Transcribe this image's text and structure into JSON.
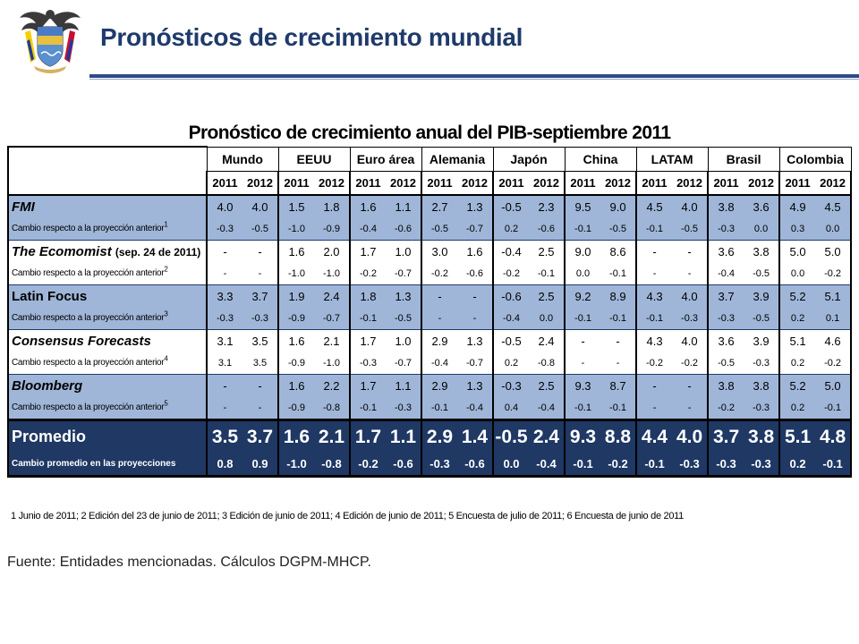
{
  "header": {
    "title": "Pronósticos de crecimiento mundial"
  },
  "table": {
    "title": "Pronóstico de crecimiento anual del PIB-septiembre 2011",
    "regions": [
      "Mundo",
      "EEUU",
      "Euro área",
      "Alemania",
      "Japón",
      "China",
      "LATAM",
      "Brasil",
      "Colombia"
    ],
    "years": [
      "2011",
      "2012"
    ],
    "sources": [
      {
        "name": "FMI",
        "note": "",
        "change_label": "Cambio respecto a la proyección anterior",
        "change_sup": "1",
        "values": [
          "4.0",
          "4.0",
          "1.5",
          "1.8",
          "1.6",
          "1.1",
          "2.7",
          "1.3",
          "-0.5",
          "2.3",
          "9.5",
          "9.0",
          "4.5",
          "4.0",
          "3.8",
          "3.6",
          "4.9",
          "4.5"
        ],
        "changes": [
          "-0.3",
          "-0.5",
          "-1.0",
          "-0.9",
          "-0.4",
          "-0.6",
          "-0.5",
          "-0.7",
          "0.2",
          "-0.6",
          "-0.1",
          "-0.5",
          "-0.1",
          "-0.5",
          "-0.3",
          "0.0",
          "0.3",
          "0.0"
        ]
      },
      {
        "name": "The Ecomomist",
        "note": "(sep. 24 de 2011)",
        "change_label": "Cambio respecto a la proyección anterior",
        "change_sup": "2",
        "values": [
          "-",
          "-",
          "1.6",
          "2.0",
          "1.7",
          "1.0",
          "3.0",
          "1.6",
          "-0.4",
          "2.5",
          "9.0",
          "8.6",
          "-",
          "-",
          "3.6",
          "3.8",
          "5.0",
          "5.0"
        ],
        "changes": [
          "-",
          "-",
          "-1.0",
          "-1.0",
          "-0.2",
          "-0.7",
          "-0.2",
          "-0.6",
          "-0.2",
          "-0.1",
          "0.0",
          "-0.1",
          "-",
          "-",
          "-0.4",
          "-0.5",
          "0.0",
          "-0.2"
        ]
      },
      {
        "name": "Latin Focus",
        "note": "",
        "change_label": "Cambio respecto a la proyección anterior",
        "change_sup": "3",
        "values": [
          "3.3",
          "3.7",
          "1.9",
          "2.4",
          "1.8",
          "1.3",
          "-",
          "-",
          "-0.6",
          "2.5",
          "9.2",
          "8.9",
          "4.3",
          "4.0",
          "3.7",
          "3.9",
          "5.2",
          "5.1"
        ],
        "changes": [
          "-0.3",
          "-0.3",
          "-0.9",
          "-0.7",
          "-0.1",
          "-0.5",
          "-",
          "-",
          "-0.4",
          "0.0",
          "-0.1",
          "-0.1",
          "-0.1",
          "-0.3",
          "-0.3",
          "-0.5",
          "0.2",
          "0.1"
        ]
      },
      {
        "name": "Consensus Forecasts",
        "note": "",
        "change_label": "Cambio respecto a la proyección anterior",
        "change_sup": "4",
        "values": [
          "3.1",
          "3.5",
          "1.6",
          "2.1",
          "1.7",
          "1.0",
          "2.9",
          "1.3",
          "-0.5",
          "2.4",
          "-",
          "-",
          "4.3",
          "4.0",
          "3.6",
          "3.9",
          "5.1",
          "4.6"
        ],
        "changes": [
          "3.1",
          "3.5",
          "-0.9",
          "-1.0",
          "-0.3",
          "-0.7",
          "-0.4",
          "-0.7",
          "0.2",
          "-0.8",
          "-",
          "-",
          "-0.2",
          "-0.2",
          "-0.5",
          "-0.3",
          "0.2",
          "-0.2"
        ]
      },
      {
        "name": "Bloomberg",
        "note": "",
        "change_label": "Cambio respecto a la proyección anterior",
        "change_sup": "5",
        "values": [
          "-",
          "-",
          "1.6",
          "2.2",
          "1.7",
          "1.1",
          "2.9",
          "1.3",
          "-0.3",
          "2.5",
          "9.3",
          "8.7",
          "-",
          "-",
          "3.8",
          "3.8",
          "5.2",
          "5.0"
        ],
        "changes": [
          "-",
          "-",
          "-0.9",
          "-0.8",
          "-0.1",
          "-0.3",
          "-0.1",
          "-0.4",
          "0.4",
          "-0.4",
          "-0.1",
          "-0.1",
          "-",
          "-",
          "-0.2",
          "-0.3",
          "0.2",
          "-0.1"
        ]
      }
    ],
    "average": {
      "name": "Promedio",
      "change_label": "Cambio promedio en las proyecciones",
      "values": [
        "3.5",
        "3.7",
        "1.6",
        "2.1",
        "1.7",
        "1.1",
        "2.9",
        "1.4",
        "-0.5",
        "2.4",
        "9.3",
        "8.8",
        "4.4",
        "4.0",
        "3.7",
        "3.8",
        "5.1",
        "4.8"
      ],
      "changes": [
        "0.8",
        "0.9",
        "-1.0",
        "-0.8",
        "-0.2",
        "-0.6",
        "-0.3",
        "-0.6",
        "0.0",
        "-0.4",
        "-0.1",
        "-0.2",
        "-0.1",
        "-0.3",
        "-0.3",
        "-0.3",
        "0.2",
        "-0.1"
      ]
    },
    "footnote": "1 Junio de 2011; 2 Edición del 23 de junio de 2011; 3 Edición de junio de 2011; 4 Edición de junio de 2011; 5 Encuesta de julio de 2011; 6 Encuesta de junio de 2011"
  },
  "source": "Fuente: Entidades mencionadas. Cálculos DGPM-MHCP.",
  "colors": {
    "title": "#1f3a6b",
    "band": "#9fb6d8",
    "average": "#1f3864",
    "rule": "#2c4a86"
  }
}
